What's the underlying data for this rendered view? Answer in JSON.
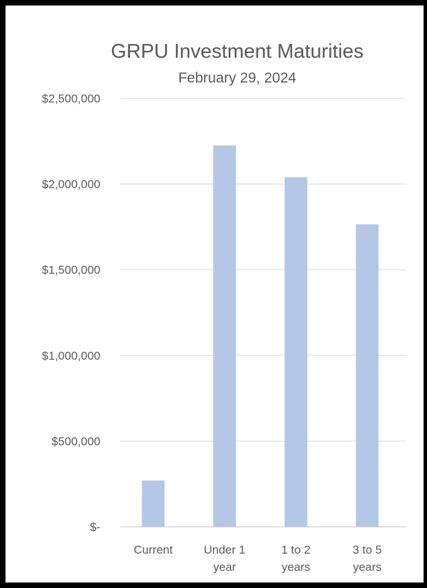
{
  "chart_data": {
    "type": "bar",
    "title": "GRPU Investment Maturities",
    "subtitle": "February 29, 2024",
    "categories": [
      [
        "Current"
      ],
      [
        "Under 1",
        "year"
      ],
      [
        "1 to 2",
        "years"
      ],
      [
        "3 to 5",
        "years"
      ]
    ],
    "values": [
      270000,
      2225000,
      2040000,
      1765000
    ],
    "ylim": [
      0,
      2500000
    ],
    "yticks": [
      0,
      500000,
      1000000,
      1500000,
      2000000,
      2500000
    ],
    "ytick_labels": [
      "$-",
      "$500,000",
      "$1,000,000",
      "$1,500,000",
      "$2,000,000",
      "$2,500,000"
    ],
    "bar_color": "#b4c7e7",
    "grid": true,
    "legend": "none"
  }
}
